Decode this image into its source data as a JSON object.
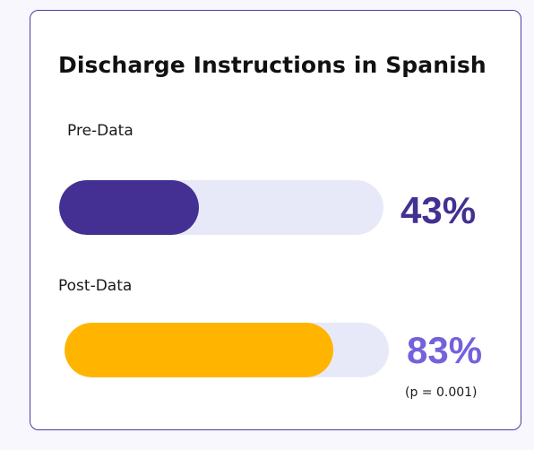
{
  "colors": {
    "pre_fill": "#433092",
    "pre_value": "#433092",
    "post_fill": "#ffb500",
    "post_value": "#7462dc",
    "track": "#e8e9f8",
    "border": "#4a3ea0"
  },
  "chart_data": {
    "type": "bar",
    "orientation": "horizontal",
    "title": "Discharge Instructions in Spanish",
    "categories": [
      "Pre-Data",
      "Post-Data"
    ],
    "values": [
      43,
      83
    ],
    "value_labels": [
      "43%",
      "83%"
    ],
    "xlim": [
      0,
      100
    ],
    "unit": "%",
    "annotation": "(p = 0.001)",
    "grid": false,
    "legend": "none"
  }
}
